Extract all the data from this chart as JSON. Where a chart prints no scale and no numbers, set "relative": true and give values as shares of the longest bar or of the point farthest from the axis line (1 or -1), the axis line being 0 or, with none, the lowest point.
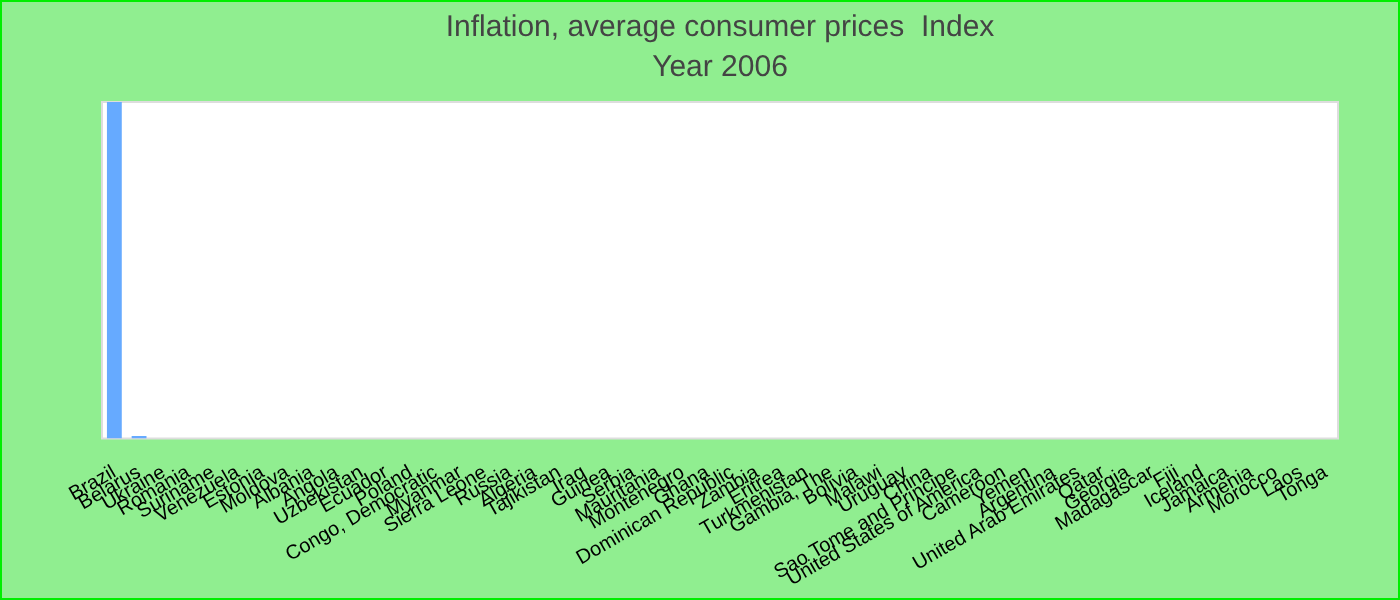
{
  "chart_data": {
    "type": "bar",
    "title": "Inflation, average consumer prices  Index",
    "subtitle": "Year 2006",
    "relative": true,
    "color": "#66aaff",
    "legend": false,
    "grid": false,
    "categories": [
      "Brazil",
      "Belarus",
      "Ukraine",
      "Romania",
      "Suriname",
      "Venezuela",
      "Estonia",
      "Moldova",
      "Albania",
      "Angola",
      "Uzbekistan",
      "Ecuador",
      "Poland",
      "Congo, Democratic",
      "Myanmar",
      "Sierra Leone",
      "Russia",
      "Algeria",
      "Tajikistan",
      "Iraq",
      "Guinea",
      "Serbia",
      "Mauritania",
      "Montenegro",
      "Ghana",
      "Dominican Republic",
      "Zambia",
      "Eritrea",
      "Turkmenistan",
      "Gambia, The",
      "Bolivia",
      "Malawi",
      "Uruguay",
      "China",
      "Sao Tome and Principe",
      "United States of America",
      "Cameroon",
      "Yemen",
      "Argentina",
      "United Arab Emirates",
      "Qatar",
      "Georgia",
      "Madagascar",
      "Fiji",
      "Iceland",
      "Jamaica",
      "Armenia",
      "Morocco",
      "Laos",
      "Tonga"
    ],
    "values": [
      1,
      0.008,
      0,
      0,
      0,
      0,
      0,
      0,
      0,
      0,
      0,
      0,
      0,
      0,
      0,
      0,
      0,
      0,
      0,
      0,
      0,
      0,
      0,
      0,
      0,
      0,
      0,
      0,
      0,
      0,
      0,
      0,
      0,
      0,
      0,
      0,
      0,
      0,
      0,
      0,
      0,
      0,
      0,
      0,
      0,
      0,
      0,
      0,
      0,
      0
    ]
  }
}
